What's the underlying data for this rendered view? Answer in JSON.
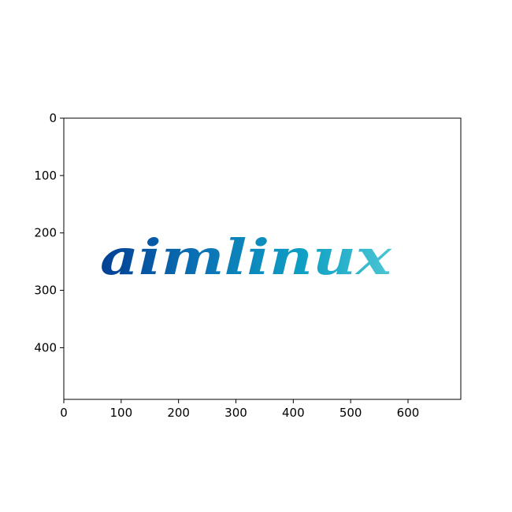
{
  "chart_data": {
    "type": "image",
    "title": "",
    "xlabel": "",
    "ylabel": "",
    "xlim": [
      0,
      692
    ],
    "ylim": [
      490,
      0
    ],
    "x_ticks": [
      "0",
      "100",
      "200",
      "300",
      "400",
      "500",
      "600"
    ],
    "y_ticks": [
      "0",
      "100",
      "200",
      "300",
      "400"
    ],
    "x_tick_values": [
      0,
      100,
      200,
      300,
      400,
      500,
      600
    ],
    "y_tick_values": [
      0,
      100,
      200,
      300,
      400
    ],
    "image_text": "aimlinux",
    "text_gradient": [
      "#033f94",
      "#0a73b5",
      "#0fa0c4",
      "#4cc6d4"
    ],
    "grid": false
  }
}
